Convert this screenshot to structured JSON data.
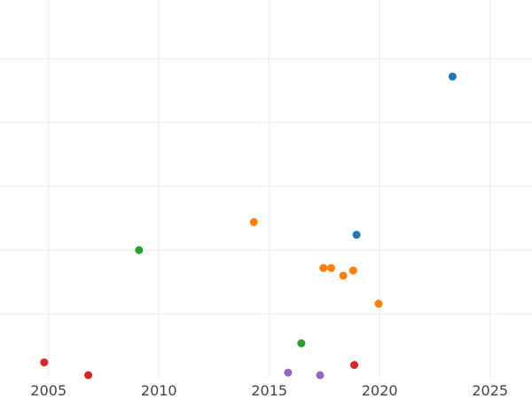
{
  "chart_data": {
    "type": "scatter",
    "title": "",
    "xlabel": "",
    "ylabel": "",
    "grid": true,
    "legend": "none",
    "xlim": [
      2002.8,
      2026.9
    ],
    "ylim": [
      0,
      14.8
    ],
    "x_ticks": [
      2005,
      2010,
      2015,
      2020,
      2025
    ],
    "x_tick_labels": [
      "2005",
      "2010",
      "2015",
      "2020",
      "2025"
    ],
    "y_ticks": [
      2.5,
      5,
      7.5,
      10,
      12.5
    ],
    "y_tick_labels": [],
    "series": [
      {
        "color": "#1f77b4",
        "points": [
          {
            "x": 2023.3,
            "y": 11.8
          },
          {
            "x": 2018.95,
            "y": 5.6
          }
        ]
      },
      {
        "color": "#ff7f0e",
        "points": [
          {
            "x": 2014.3,
            "y": 6.1
          },
          {
            "x": 2017.45,
            "y": 4.3
          },
          {
            "x": 2017.8,
            "y": 4.3
          },
          {
            "x": 2018.35,
            "y": 4.0
          },
          {
            "x": 2018.8,
            "y": 4.2
          },
          {
            "x": 2019.95,
            "y": 2.9
          }
        ]
      },
      {
        "color": "#2ca02c",
        "points": [
          {
            "x": 2009.1,
            "y": 5.0
          },
          {
            "x": 2016.45,
            "y": 1.35
          }
        ]
      },
      {
        "color": "#d62728",
        "points": [
          {
            "x": 2004.8,
            "y": 0.6
          },
          {
            "x": 2006.8,
            "y": 0.1
          },
          {
            "x": 2018.85,
            "y": 0.5
          }
        ]
      },
      {
        "color": "#9467bd",
        "points": [
          {
            "x": 2015.85,
            "y": 0.2
          },
          {
            "x": 2017.3,
            "y": 0.1
          }
        ]
      }
    ]
  }
}
